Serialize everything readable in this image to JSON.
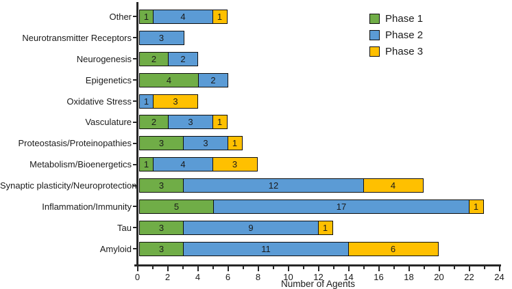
{
  "chart_data": {
    "type": "bar",
    "orientation": "horizontal",
    "stacked": true,
    "title": "",
    "xlabel": "Number of Agents",
    "ylabel": "",
    "xlim": [
      0,
      24
    ],
    "xtick_step_major": 2,
    "xtick_step_minor": 1,
    "grid": false,
    "legend_position": "top-right",
    "categories_top_to_bottom": [
      "Other",
      "Neurotransmitter Receptors",
      "Neurogenesis",
      "Epigenetics",
      "Oxidative Stress",
      "Vasculature",
      "Proteostasis/Proteinopathies",
      "Metabolism/Bioenergetics",
      "Synaptic plasticity/Neuroprotection",
      "Inflammation/Immunity",
      "Tau",
      "Amyloid"
    ],
    "series": [
      {
        "name": "Phase 1",
        "color": "#70AD47",
        "values": [
          1,
          0,
          2,
          4,
          0,
          2,
          3,
          1,
          3,
          5,
          3,
          3
        ]
      },
      {
        "name": "Phase 2",
        "color": "#5B9BD5",
        "values": [
          4,
          3,
          2,
          2,
          1,
          3,
          3,
          4,
          12,
          17,
          9,
          11
        ]
      },
      {
        "name": "Phase 3",
        "color": "#FFC000",
        "values": [
          1,
          0,
          0,
          0,
          3,
          1,
          1,
          3,
          4,
          1,
          1,
          6
        ]
      }
    ],
    "totals": [
      6,
      3,
      4,
      6,
      4,
      6,
      7,
      8,
      19,
      23,
      13,
      20
    ],
    "axis_color": "#262626",
    "segment_border_color": "#0d0d0d",
    "value_label_color": "#1a1a1a"
  }
}
